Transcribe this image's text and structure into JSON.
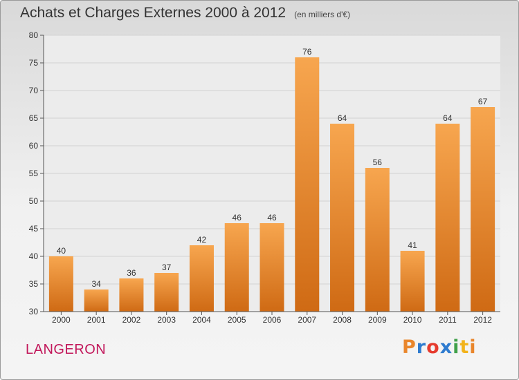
{
  "header": {
    "title": "Achats et Charges Externes 2000 à 2012",
    "subtitle": "(en milliers d'€)"
  },
  "footer": {
    "place": "LANGERON",
    "brand": "Proxiti"
  },
  "colors": {
    "bar_top": "#f7a64f",
    "bar_bottom": "#cf6a14",
    "place_text": "#c2185b"
  },
  "chart_data": {
    "type": "bar",
    "title": "Achats et Charges Externes 2000 à 2012",
    "subtitle": "(en milliers d'€)",
    "xlabel": "",
    "ylabel": "",
    "categories": [
      "2000",
      "2001",
      "2002",
      "2003",
      "2004",
      "2005",
      "2006",
      "2007",
      "2008",
      "2009",
      "2010",
      "2011",
      "2012"
    ],
    "values": [
      40,
      34,
      36,
      37,
      42,
      46,
      46,
      76,
      64,
      56,
      41,
      64,
      67
    ],
    "ylim": [
      30,
      80
    ],
    "yticks": [
      30,
      35,
      40,
      45,
      50,
      55,
      60,
      65,
      70,
      75,
      80
    ],
    "grid": true,
    "data_labels": true
  }
}
